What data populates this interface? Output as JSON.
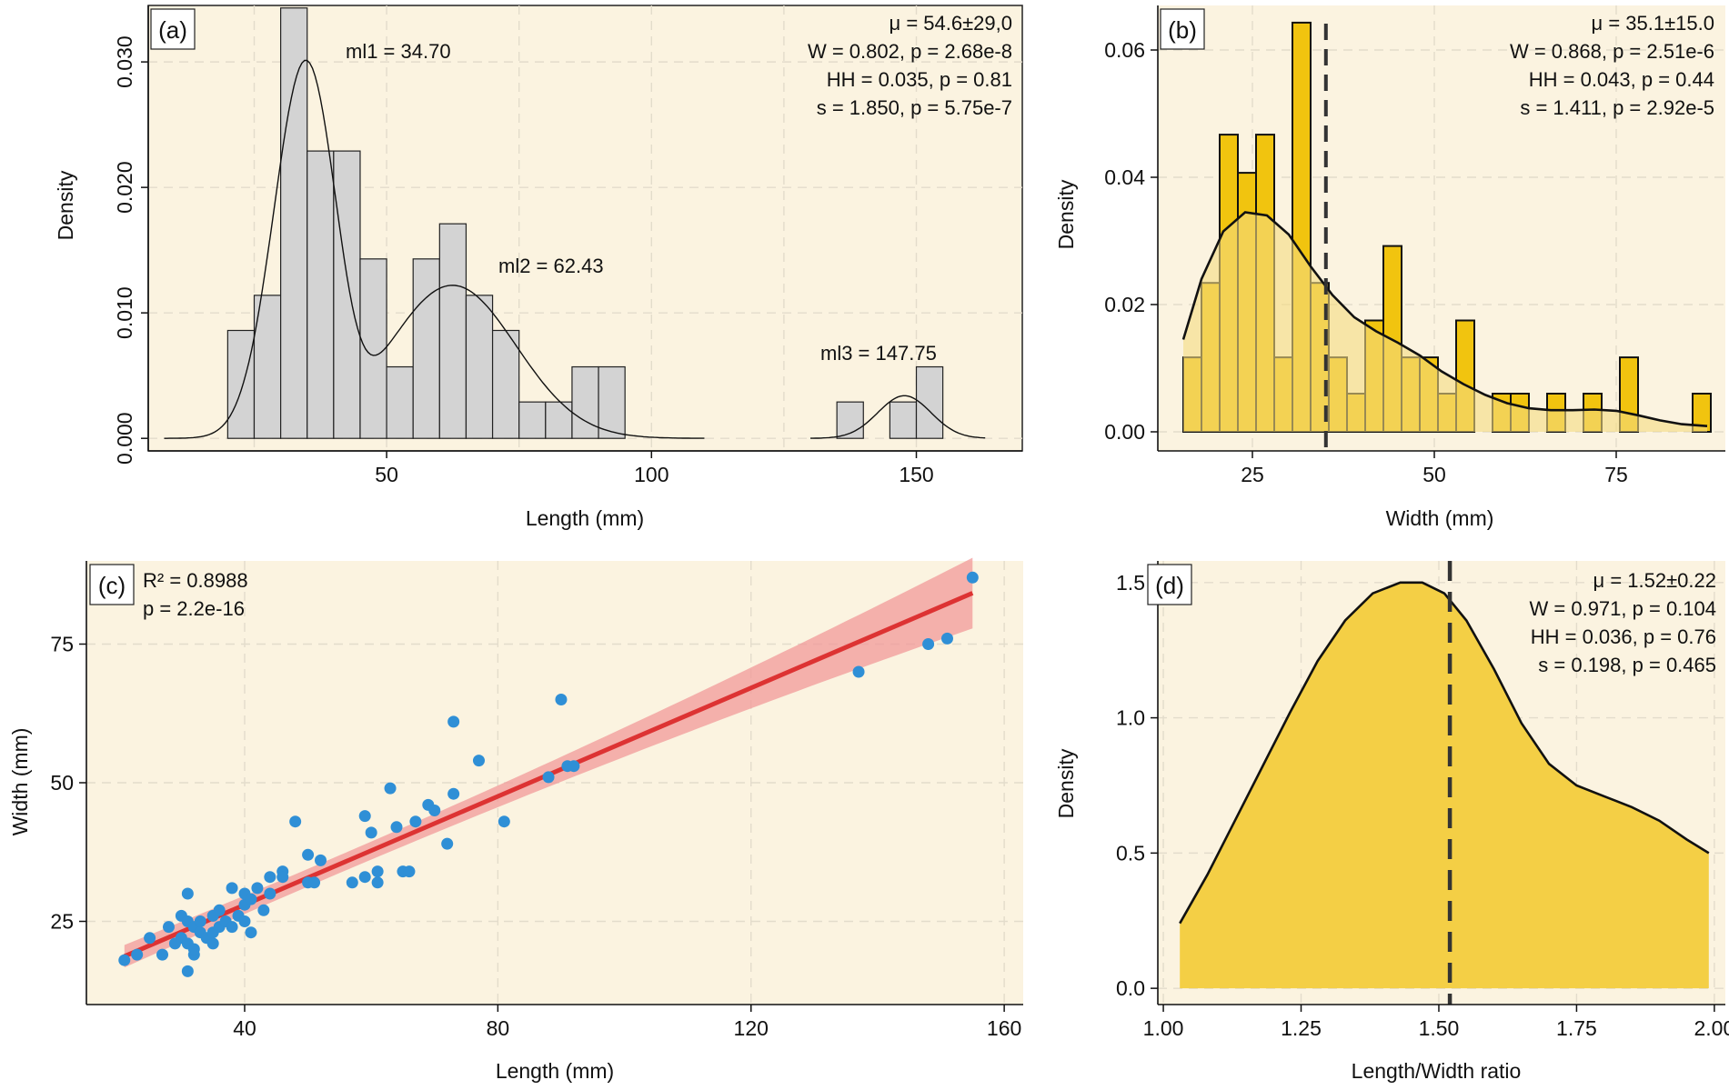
{
  "chart_data": [
    {
      "panel": "(a)",
      "type": "bar",
      "subtype": "histogram-with-density",
      "xlabel": "Length (mm)",
      "ylabel": "Density",
      "xlim": [
        5,
        170
      ],
      "ylim": [
        -0.001,
        0.0345
      ],
      "xticks": [
        50,
        100,
        150
      ],
      "yticks": [
        0.0,
        0.01,
        0.02,
        0.03
      ],
      "ytick_labels": [
        "0.000",
        "0.010",
        "0.020",
        "0.030"
      ],
      "bins": [
        {
          "x0": 20,
          "x1": 25,
          "density": 0.0086
        },
        {
          "x0": 25,
          "x1": 30,
          "density": 0.0114
        },
        {
          "x0": 30,
          "x1": 35,
          "density": 0.0343
        },
        {
          "x0": 35,
          "x1": 40,
          "density": 0.0229
        },
        {
          "x0": 40,
          "x1": 45,
          "density": 0.0229
        },
        {
          "x0": 45,
          "x1": 50,
          "density": 0.0143
        },
        {
          "x0": 50,
          "x1": 55,
          "density": 0.0057
        },
        {
          "x0": 55,
          "x1": 60,
          "density": 0.0143
        },
        {
          "x0": 60,
          "x1": 65,
          "density": 0.0171
        },
        {
          "x0": 65,
          "x1": 70,
          "density": 0.0114
        },
        {
          "x0": 70,
          "x1": 75,
          "density": 0.0086
        },
        {
          "x0": 75,
          "x1": 80,
          "density": 0.0029
        },
        {
          "x0": 80,
          "x1": 85,
          "density": 0.0029
        },
        {
          "x0": 85,
          "x1": 90,
          "density": 0.0057
        },
        {
          "x0": 90,
          "x1": 95,
          "density": 0.0057
        },
        {
          "x0": 135,
          "x1": 140,
          "density": 0.0029
        },
        {
          "x0": 145,
          "x1": 150,
          "density": 0.0029
        },
        {
          "x0": 150,
          "x1": 155,
          "density": 0.0057
        }
      ],
      "density_components": [
        {
          "segment": [
            8,
            110
          ],
          "peaks": [
            {
              "mu": 34.7,
              "sigma": 6.0,
              "amp": 0.0295
            },
            {
              "mu": 62.43,
              "sigma": 12.0,
              "amp": 0.0122
            },
            {
              "mu": 44.0,
              "sigma": 4.0,
              "amp": -0.003
            }
          ]
        },
        {
          "segment": [
            130,
            163
          ],
          "peaks": [
            {
              "mu": 147.75,
              "sigma": 5.0,
              "amp": 0.0034
            }
          ]
        }
      ],
      "annotations": [
        {
          "text": "ml1 = 34.70",
          "x": 34.7
        },
        {
          "text": "ml2 = 62.43",
          "x": 62.43
        },
        {
          "text": "ml3 = 147.75",
          "x": 147.75
        }
      ],
      "stats": [
        "μ = 54.6±29,0",
        "W = 0.802, p = 2.68e-8",
        "HH = 0.035, p = 0.81",
        "s = 1.850, p = 5.75e-7"
      ]
    },
    {
      "panel": "(b)",
      "type": "bar",
      "subtype": "histogram-with-density",
      "xlabel": "Width (mm)",
      "ylabel": "Density",
      "xlim": [
        12,
        90
      ],
      "ylim": [
        -0.003,
        0.067
      ],
      "xticks": [
        25,
        50,
        75
      ],
      "yticks": [
        0.0,
        0.02,
        0.04,
        0.06
      ],
      "ytick_labels": [
        "0.00",
        "0.02",
        "0.04",
        "0.06"
      ],
      "mean_line": 35.1,
      "bins": [
        {
          "x0": 15.5,
          "x1": 18.0,
          "density": 0.0117
        },
        {
          "x0": 18.0,
          "x1": 20.5,
          "density": 0.0234
        },
        {
          "x0": 20.5,
          "x1": 23.0,
          "density": 0.0467
        },
        {
          "x0": 23.0,
          "x1": 25.5,
          "density": 0.0407
        },
        {
          "x0": 25.5,
          "x1": 28.0,
          "density": 0.0467
        },
        {
          "x0": 28.0,
          "x1": 30.5,
          "density": 0.0117
        },
        {
          "x0": 30.5,
          "x1": 33.0,
          "density": 0.0643
        },
        {
          "x0": 33.0,
          "x1": 35.5,
          "density": 0.0234
        },
        {
          "x0": 35.5,
          "x1": 38.0,
          "density": 0.0117
        },
        {
          "x0": 38.0,
          "x1": 40.5,
          "density": 0.006
        },
        {
          "x0": 40.5,
          "x1": 43.0,
          "density": 0.0175
        },
        {
          "x0": 43.0,
          "x1": 45.5,
          "density": 0.0292
        },
        {
          "x0": 45.5,
          "x1": 48.0,
          "density": 0.0117
        },
        {
          "x0": 48.0,
          "x1": 50.5,
          "density": 0.0117
        },
        {
          "x0": 50.5,
          "x1": 53.0,
          "density": 0.006
        },
        {
          "x0": 53.0,
          "x1": 55.5,
          "density": 0.0175
        },
        {
          "x0": 55.5,
          "x1": 58.0,
          "density": 0.0
        },
        {
          "x0": 58.0,
          "x1": 60.5,
          "density": 0.006
        },
        {
          "x0": 60.5,
          "x1": 63.0,
          "density": 0.006
        },
        {
          "x0": 63.0,
          "x1": 65.5,
          "density": 0.0
        },
        {
          "x0": 65.5,
          "x1": 68.0,
          "density": 0.006
        },
        {
          "x0": 68.0,
          "x1": 70.5,
          "density": 0.0
        },
        {
          "x0": 70.5,
          "x1": 73.0,
          "density": 0.006
        },
        {
          "x0": 73.0,
          "x1": 75.5,
          "density": 0.0
        },
        {
          "x0": 75.5,
          "x1": 78.0,
          "density": 0.0117
        },
        {
          "x0": 78.0,
          "x1": 80.5,
          "density": 0.0
        },
        {
          "x0": 80.5,
          "x1": 83.0,
          "density": 0.0
        },
        {
          "x0": 83.0,
          "x1": 85.5,
          "density": 0.0
        },
        {
          "x0": 85.5,
          "x1": 88.0,
          "density": 0.006
        }
      ],
      "density_curve": {
        "x": [
          15.5,
          18,
          21,
          24,
          27,
          30,
          33,
          36,
          39,
          42,
          45,
          48,
          51,
          54,
          57,
          60,
          63,
          66,
          69,
          72,
          75,
          78,
          81,
          84,
          87.5
        ],
        "y": [
          0.0145,
          0.024,
          0.0315,
          0.0345,
          0.034,
          0.031,
          0.026,
          0.0215,
          0.018,
          0.0158,
          0.014,
          0.012,
          0.0095,
          0.0075,
          0.0058,
          0.0045,
          0.0037,
          0.0034,
          0.0034,
          0.0035,
          0.0033,
          0.0026,
          0.0018,
          0.0012,
          0.0009
        ]
      },
      "stats": [
        "μ = 35.1±15.0",
        "W = 0.868, p = 2.51e-6",
        "HH = 0.043, p = 0.44",
        "s = 1.411, p = 2.92e-5"
      ]
    },
    {
      "panel": "(c)",
      "type": "scatter",
      "xlabel": "Length (mm)",
      "ylabel": "Width (mm)",
      "xlim": [
        15,
        163
      ],
      "ylim": [
        10,
        90
      ],
      "xticks": [
        40,
        80,
        120,
        160
      ],
      "yticks": [
        25,
        50,
        75
      ],
      "points": [
        [
          21,
          18
        ],
        [
          23,
          19
        ],
        [
          25,
          22
        ],
        [
          27,
          19
        ],
        [
          28,
          24
        ],
        [
          29,
          21
        ],
        [
          30,
          22
        ],
        [
          30,
          26
        ],
        [
          31,
          30
        ],
        [
          31,
          25
        ],
        [
          31,
          21
        ],
        [
          31,
          16
        ],
        [
          32,
          24
        ],
        [
          32,
          19
        ],
        [
          32,
          20
        ],
        [
          33,
          25
        ],
        [
          33,
          23
        ],
        [
          34,
          22
        ],
        [
          35,
          21
        ],
        [
          35,
          23
        ],
        [
          35,
          26
        ],
        [
          36,
          24
        ],
        [
          36,
          27
        ],
        [
          37,
          25
        ],
        [
          38,
          31
        ],
        [
          38,
          24
        ],
        [
          39,
          26
        ],
        [
          40,
          28
        ],
        [
          40,
          30
        ],
        [
          40,
          25
        ],
        [
          41,
          23
        ],
        [
          41,
          29
        ],
        [
          42,
          31
        ],
        [
          43,
          27
        ],
        [
          44,
          33
        ],
        [
          44,
          30
        ],
        [
          46,
          34
        ],
        [
          46,
          33
        ],
        [
          48,
          43
        ],
        [
          50,
          37
        ],
        [
          50,
          32
        ],
        [
          51,
          32
        ],
        [
          52,
          36
        ],
        [
          57,
          32
        ],
        [
          59,
          44
        ],
        [
          59,
          33
        ],
        [
          60,
          41
        ],
        [
          61,
          34
        ],
        [
          61,
          32
        ],
        [
          63,
          49
        ],
        [
          64,
          42
        ],
        [
          65,
          34
        ],
        [
          66,
          34
        ],
        [
          67,
          43
        ],
        [
          69,
          46
        ],
        [
          70,
          45
        ],
        [
          72,
          39
        ],
        [
          73,
          61
        ],
        [
          73,
          48
        ],
        [
          77,
          54
        ],
        [
          81,
          43
        ],
        [
          88,
          51
        ],
        [
          90,
          65
        ],
        [
          91,
          53
        ],
        [
          92,
          53
        ],
        [
          137,
          70
        ],
        [
          148,
          75
        ],
        [
          151,
          76
        ],
        [
          155,
          87
        ]
      ],
      "regression": {
        "x0": 21,
        "y0": 18.7,
        "x1": 155,
        "y1": 84.2
      },
      "stats": [
        "R² = 0.8988",
        "p = 2.2e-16"
      ]
    },
    {
      "panel": "(d)",
      "type": "area",
      "xlabel": "Length/Width ratio",
      "ylabel": "Density",
      "xlim": [
        0.99,
        2.02
      ],
      "ylim": [
        -0.06,
        1.58
      ],
      "xticks": [
        1.0,
        1.25,
        1.5,
        1.75,
        2.0
      ],
      "xtick_labels": [
        "1.00",
        "1.25",
        "1.50",
        "1.75",
        "2.00"
      ],
      "yticks": [
        0.0,
        0.5,
        1.0,
        1.5
      ],
      "ytick_labels": [
        "0.0",
        "0.5",
        "1.0",
        "1.5"
      ],
      "mean_line": 1.52,
      "density_curve": {
        "x": [
          1.03,
          1.08,
          1.13,
          1.18,
          1.23,
          1.28,
          1.33,
          1.38,
          1.43,
          1.47,
          1.51,
          1.55,
          1.6,
          1.65,
          1.7,
          1.75,
          1.8,
          1.85,
          1.9,
          1.95,
          1.99
        ],
        "y": [
          0.24,
          0.42,
          0.62,
          0.82,
          1.02,
          1.21,
          1.36,
          1.46,
          1.5,
          1.5,
          1.46,
          1.36,
          1.18,
          0.98,
          0.83,
          0.75,
          0.71,
          0.67,
          0.62,
          0.55,
          0.5
        ]
      },
      "stats": [
        "μ = 1.52±0.22",
        "W = 0.971, p = 0.104",
        "HH = 0.036, p = 0.76",
        "s = 0.198, p = 0.465"
      ]
    }
  ]
}
